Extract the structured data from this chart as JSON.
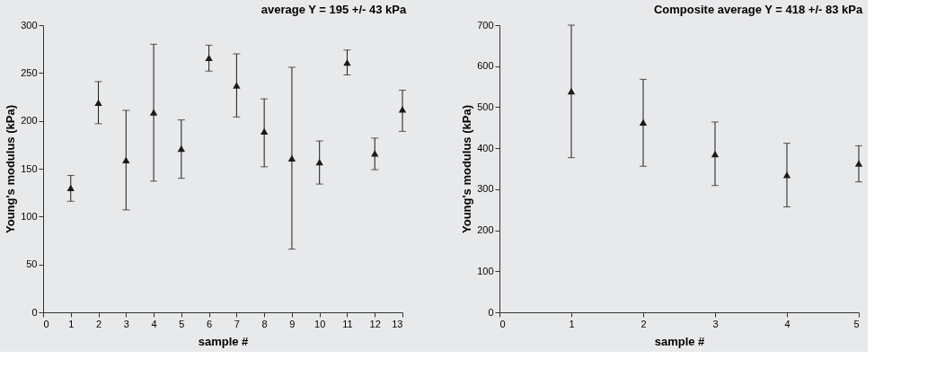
{
  "chart_data": [
    {
      "type": "scatter",
      "title": "average Y = 195 +/- 43 kPa",
      "xlabel": "sample #",
      "ylabel": "Young's modulus (kPa)",
      "x": [
        1,
        2,
        3,
        4,
        5,
        6,
        7,
        8,
        9,
        10,
        11,
        12,
        13
      ],
      "values": [
        130,
        219,
        159,
        209,
        171,
        266,
        237,
        189,
        161,
        157,
        261,
        166,
        212
      ],
      "errors": [
        [
          116,
          143
        ],
        [
          197,
          241
        ],
        [
          107,
          211
        ],
        [
          137,
          280
        ],
        [
          140,
          201
        ],
        [
          252,
          279
        ],
        [
          204,
          270
        ],
        [
          152,
          223
        ],
        [
          66,
          256
        ],
        [
          134,
          179
        ],
        [
          248,
          274
        ],
        [
          149,
          182
        ],
        [
          189,
          232
        ]
      ],
      "color": "#1a1a1a",
      "marker": "triangle",
      "xlim": [
        0,
        13
      ],
      "xticks": [
        0,
        1,
        2,
        3,
        4,
        5,
        6,
        7,
        8,
        9,
        10,
        11,
        12,
        13
      ],
      "ylim": [
        0,
        300
      ],
      "yticks": [
        0,
        50,
        100,
        150,
        200,
        250,
        300
      ],
      "grid": false
    },
    {
      "type": "scatter",
      "title": "Composite average Y = 418 +/- 83 kPa",
      "xlabel": "sample #",
      "ylabel": "Young's modulus (kPa)",
      "x": [
        1,
        2,
        3,
        4,
        5
      ],
      "values": [
        539,
        463,
        386,
        335,
        363
      ],
      "errors": [
        [
          377,
          700
        ],
        [
          356,
          568
        ],
        [
          309,
          464
        ],
        [
          257,
          412
        ],
        [
          318,
          406
        ]
      ],
      "color": "#1a1a1a",
      "marker": "triangle",
      "xlim": [
        0,
        5
      ],
      "xticks": [
        0,
        1,
        2,
        3,
        4,
        5
      ],
      "ylim": [
        0,
        700
      ],
      "yticks": [
        0,
        100,
        200,
        300,
        400,
        500,
        600,
        700
      ],
      "grid": false
    }
  ]
}
